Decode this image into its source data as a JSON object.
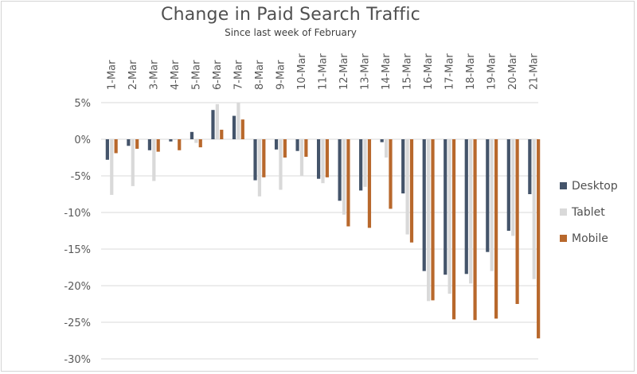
{
  "header": {
    "title": "Change in Paid Search Traffic",
    "subtitle": "Since last week of February"
  },
  "colors": {
    "Desktop": "#44546A",
    "Tablet": "#D9D9D9",
    "Mobile": "#B8682C",
    "gridline": "#D9D9D9",
    "axis_text": "#595959"
  },
  "legend": [
    {
      "label": "Desktop",
      "color": "#44546A"
    },
    {
      "label": "Tablet",
      "color": "#D9D9D9"
    },
    {
      "label": "Mobile",
      "color": "#B8682C"
    }
  ],
  "chart_data": {
    "type": "bar",
    "title": "Change in Paid Search Traffic",
    "subtitle": "Since last week of February",
    "xlabel": "",
    "ylabel": "",
    "categories": [
      "1-Mar",
      "2-Mar",
      "3-Mar",
      "4-Mar",
      "5-Mar",
      "6-Mar",
      "7-Mar",
      "8-Mar",
      "9-Mar",
      "10-Mar",
      "11-Mar",
      "12-Mar",
      "13-Mar",
      "14-Mar",
      "15-Mar",
      "16-Mar",
      "17-Mar",
      "18-Mar",
      "19-Mar",
      "20-Mar",
      "21-Mar"
    ],
    "series": [
      {
        "name": "Desktop",
        "values": [
          -2.8,
          -0.9,
          -1.5,
          -0.3,
          1.0,
          4.0,
          3.2,
          -5.6,
          -1.4,
          -1.6,
          -5.4,
          -8.4,
          -7.0,
          -0.4,
          -7.4,
          -18.0,
          -18.5,
          -18.4,
          -15.4,
          -12.5,
          -7.5
        ]
      },
      {
        "name": "Tablet",
        "values": [
          -7.6,
          -6.4,
          -5.7,
          -0.1,
          -0.5,
          4.8,
          5.0,
          -7.8,
          -6.9,
          -5.0,
          -6.0,
          -10.3,
          -6.5,
          -2.5,
          -13.0,
          -22.1,
          -21.1,
          -19.7,
          -18.0,
          -13.2,
          -19.1
        ]
      },
      {
        "name": "Mobile",
        "values": [
          -1.9,
          -1.3,
          -1.7,
          -1.5,
          -1.1,
          1.3,
          2.7,
          -5.2,
          -2.5,
          -2.4,
          -5.2,
          -11.9,
          -12.1,
          -9.5,
          -14.1,
          -22.0,
          -24.6,
          -24.7,
          -24.5,
          -22.5,
          -27.2
        ]
      }
    ],
    "yticks": [
      "5%",
      "0%",
      "-5%",
      "-10%",
      "-15%",
      "-20%",
      "-25%",
      "-30%"
    ],
    "ylim": [
      -30,
      5
    ],
    "grid": true,
    "legend_position": "right"
  }
}
